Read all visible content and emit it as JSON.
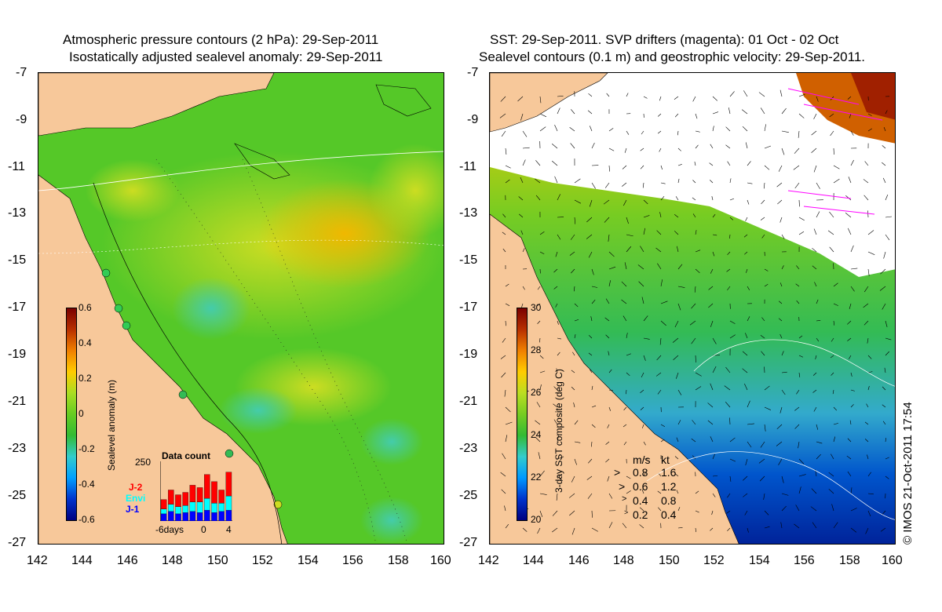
{
  "left_panel": {
    "title_line1": "Atmospheric pressure contours (2 hPa): 29-Sep-2011",
    "title_line2": "Isostatically adjusted sealevel anomaly: 29-Sep-2011",
    "colorbar": {
      "label": "Sealevel anomaly (m)",
      "ticks": [
        "0.6",
        "0.4",
        "0.2",
        "0",
        "-0.2",
        "-0.4",
        "-0.6"
      ],
      "range": [
        -0.6,
        0.6
      ],
      "colors": [
        "#000080",
        "#0033cc",
        "#00a0ff",
        "#33cccc",
        "#33bb33",
        "#66cc22",
        "#aadd22",
        "#ffcc00",
        "#f08000",
        "#b83000",
        "#7a0000"
      ]
    },
    "data_count": {
      "title": "Data count",
      "ymax_label": "250",
      "legend": [
        {
          "label": "J-2",
          "color": "#ff0000"
        },
        {
          "label": "Envi",
          "color": "#00ffff"
        },
        {
          "label": "J-1",
          "color": "#0000ff"
        }
      ],
      "x_labels": [
        "-6days",
        "0",
        "4"
      ],
      "bars": [
        {
          "j1": 30,
          "envi": 20,
          "j2": 40
        },
        {
          "j1": 40,
          "envi": 30,
          "j2": 60
        },
        {
          "j1": 30,
          "envi": 30,
          "j2": 50
        },
        {
          "j1": 35,
          "envi": 30,
          "j2": 55
        },
        {
          "j1": 40,
          "envi": 40,
          "j2": 70
        },
        {
          "j1": 35,
          "envi": 45,
          "j2": 60
        },
        {
          "j1": 45,
          "envi": 50,
          "j2": 100
        },
        {
          "j1": 35,
          "envi": 40,
          "j2": 90
        },
        {
          "j1": 40,
          "envi": 35,
          "j2": 55
        },
        {
          "j1": 45,
          "envi": 60,
          "j2": 100
        }
      ]
    }
  },
  "right_panel": {
    "title_line1": "SST: 29-Sep-2011. SVP drifters (magenta): 01 Oct - 02 Oct",
    "title_line2": "Sealevel contours (0.1 m) and geostrophic velocity: 29-Sep-2011.",
    "colorbar": {
      "label": "3-day SST composite (deg C)",
      "ticks": [
        "30",
        "28",
        "26",
        "24",
        "22",
        "20"
      ],
      "range": [
        20,
        30
      ],
      "colors": [
        "#000080",
        "#0033cc",
        "#0099ff",
        "#33cccc",
        "#33bb33",
        "#77cc22",
        "#bbdd22",
        "#ffcc00",
        "#f08000",
        "#b83000",
        "#7a0000"
      ]
    },
    "velocity_legend": {
      "header_ms": "m/s",
      "header_kt": "kt",
      "rows": [
        {
          "ms": "0.8",
          "kt": "1.6"
        },
        {
          "ms": "0.6",
          "kt": "1.2"
        },
        {
          "ms": "0.4",
          "kt": "0.8"
        },
        {
          "ms": "0.2",
          "kt": "0.4"
        }
      ]
    },
    "credit": "© IMOS 21-Oct-2011 17:54"
  },
  "axes": {
    "y_labels": [
      "-7",
      "-9",
      "-11",
      "-13",
      "-15",
      "-17",
      "-19",
      "-21",
      "-23",
      "-25",
      "-27"
    ],
    "x_labels": [
      "142",
      "144",
      "146",
      "148",
      "150",
      "152",
      "154",
      "156",
      "158",
      "160"
    ]
  },
  "colors": {
    "land": "#f7c89a",
    "sea_base": "#55cc22",
    "white_cloud": "#ffffff"
  }
}
